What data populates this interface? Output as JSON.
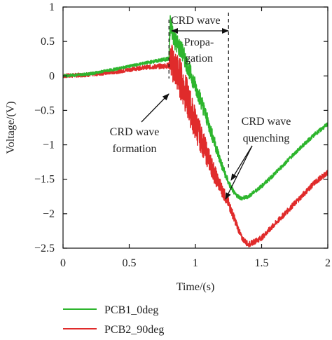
{
  "chart_data": {
    "type": "line",
    "xlabel": "Time/(s)",
    "ylabel": "Voltage/(V)",
    "xlim": [
      0,
      2
    ],
    "ylim": [
      -2.5,
      1
    ],
    "xticks": [
      0,
      0.5,
      1,
      1.5,
      2
    ],
    "xtick_labels": [
      "0",
      "0.5",
      "1",
      "1.5",
      "2"
    ],
    "yticks": [
      1,
      0.5,
      0,
      -0.5,
      -1,
      -1.5,
      -2,
      -2.5
    ],
    "ytick_labels": [
      "1",
      "0.5",
      "0",
      "−0.5",
      "−1",
      "−1.5",
      "−2",
      "−2.5"
    ],
    "grid": false,
    "legend_position": "below",
    "series": [
      {
        "name": "PCB1_0deg",
        "color": "#2db52d",
        "x": [
          0,
          0.2,
          0.4,
          0.6,
          0.8,
          0.81,
          0.85,
          0.9,
          0.95,
          1.0,
          1.05,
          1.1,
          1.15,
          1.2,
          1.25,
          1.3,
          1.35,
          1.4,
          1.5,
          1.6,
          1.7,
          1.8,
          1.9,
          2.0
        ],
        "y": [
          0,
          0.03,
          0.1,
          0.18,
          0.25,
          0.75,
          0.5,
          0.35,
          0.1,
          -0.15,
          -0.4,
          -0.7,
          -1.0,
          -1.3,
          -1.55,
          -1.72,
          -1.78,
          -1.75,
          -1.6,
          -1.42,
          -1.22,
          -1.03,
          -0.85,
          -0.7
        ],
        "noise": [
          0.02,
          0.02,
          0.02,
          0.02,
          0.03,
          0.15,
          0.15,
          0.14,
          0.13,
          0.12,
          0.12,
          0.1,
          0.09,
          0.07,
          0.05,
          0.03,
          0.03,
          0.03,
          0.03,
          0.03,
          0.03,
          0.03,
          0.03,
          0.03
        ]
      },
      {
        "name": "PCB2_90deg",
        "color": "#e02b2b",
        "x": [
          0,
          0.2,
          0.4,
          0.6,
          0.8,
          0.81,
          0.85,
          0.9,
          0.95,
          1.0,
          1.05,
          1.1,
          1.15,
          1.2,
          1.25,
          1.3,
          1.35,
          1.4,
          1.5,
          1.6,
          1.7,
          1.8,
          1.9,
          2.0
        ],
        "y": [
          0,
          0.02,
          0.06,
          0.12,
          0.15,
          0.25,
          0.1,
          -0.1,
          -0.4,
          -0.7,
          -0.95,
          -1.2,
          -1.45,
          -1.65,
          -1.85,
          -2.1,
          -2.35,
          -2.45,
          -2.35,
          -2.15,
          -1.95,
          -1.75,
          -1.55,
          -1.4
        ],
        "noise": [
          0.03,
          0.03,
          0.03,
          0.03,
          0.04,
          0.25,
          0.3,
          0.3,
          0.28,
          0.25,
          0.2,
          0.17,
          0.14,
          0.1,
          0.08,
          0.06,
          0.04,
          0.04,
          0.04,
          0.04,
          0.04,
          0.04,
          0.04,
          0.04
        ]
      }
    ],
    "annotations": {
      "crd_wave_top": "CRD wave",
      "propagation_1": "Propa-",
      "propagation_2": "gation",
      "formation_1": "CRD wave",
      "formation_2": "formation",
      "quenching_1": "CRD wave",
      "quenching_2": "quenching"
    },
    "markers": {
      "formation_x": 0.8,
      "quenching_x": 1.25
    }
  }
}
